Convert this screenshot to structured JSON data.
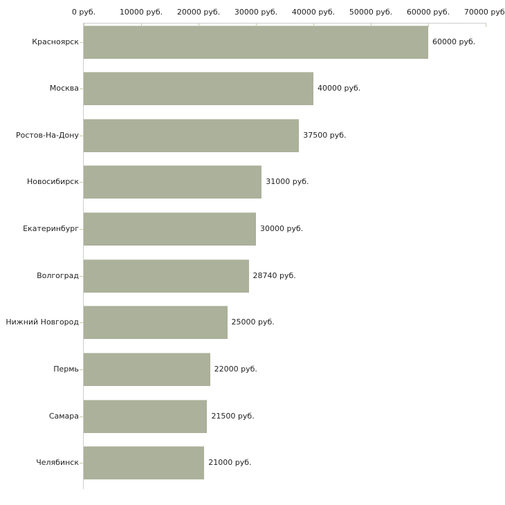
{
  "chart_data": {
    "type": "bar",
    "orientation": "horizontal",
    "title": "",
    "xlabel": "",
    "ylabel": "",
    "unit": "руб.",
    "categories": [
      "Красноярск",
      "Москва",
      "Ростов-На-Дону",
      "Новосибирск",
      "Екатеринбург",
      "Волгоград",
      "Нижний Новгород",
      "Пермь",
      "Самара",
      "Челябинск"
    ],
    "values": [
      60000,
      40000,
      37500,
      31000,
      30000,
      28740,
      25000,
      22000,
      21500,
      21000
    ],
    "value_labels": [
      "60000 руб.",
      "40000 руб.",
      "37500 руб.",
      "31000 руб.",
      "30000 руб.",
      "28740 руб.",
      "25000 руб.",
      "22000 руб.",
      "21500 руб.",
      "21000 руб."
    ],
    "x_axis": {
      "position": "top",
      "range": [
        0,
        70000
      ],
      "tick_values": [
        0,
        10000,
        20000,
        30000,
        40000,
        50000,
        60000,
        70000
      ],
      "tick_labels": [
        "0 руб.",
        "10000 руб.",
        "20000 руб.",
        "30000 руб.",
        "40000 руб.",
        "50000 руб.",
        "60000 руб.",
        "70000 руб."
      ]
    },
    "grid": false,
    "legend": false,
    "colors": {
      "bar": "#abb19a",
      "axis_line": "#cccccc",
      "tick": "#cbcba4",
      "text": "#222222",
      "background": "#ffffff"
    }
  }
}
